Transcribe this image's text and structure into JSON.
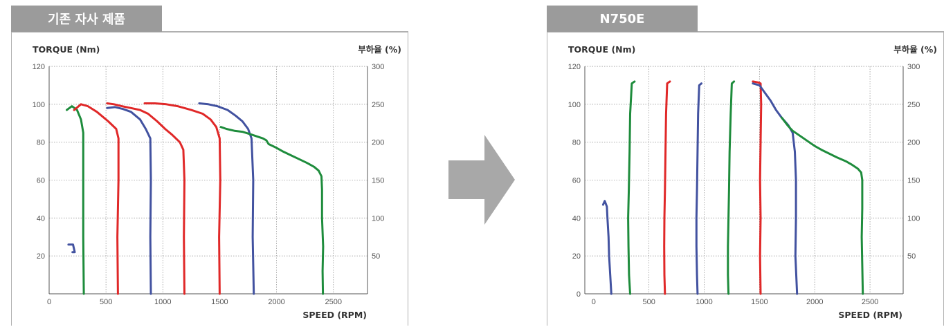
{
  "panels": [
    {
      "tab_label": "기존 자사 제품",
      "chart": {
        "type": "line",
        "ylabel": "TORQUE (Nm)",
        "y2label": "부하율 (%)",
        "xlabel": "SPEED (RPM)",
        "xlim": [
          0,
          2800
        ],
        "ylim": [
          0,
          120
        ],
        "y2lim": [
          0,
          300
        ],
        "x_ticks": [
          "0",
          "500",
          "1000",
          "1500",
          "2000",
          "2500"
        ],
        "y_ticks": [
          "20",
          "40",
          "60",
          "80",
          "100",
          "120"
        ],
        "y2_ticks": [
          "50",
          "100",
          "150",
          "200",
          "250",
          "300"
        ],
        "grid": true,
        "series": [
          {
            "color": "#1e8c3c",
            "points": [
              [
                155,
                97
              ],
              [
                200,
                99
              ],
              [
                245,
                97
              ],
              [
                280,
                92
              ],
              [
                300,
                85
              ],
              [
                300,
                60
              ],
              [
                300,
                30
              ],
              [
                305,
                0
              ]
            ]
          },
          {
            "color": "#4252a0",
            "points": [
              [
                170,
                26
              ],
              [
                210,
                26
              ],
              [
                225,
                22
              ],
              [
                205,
                22
              ]
            ]
          },
          {
            "color": "#e02828",
            "points": [
              [
                220,
                97
              ],
              [
                280,
                100
              ],
              [
                340,
                99
              ],
              [
                420,
                96
              ],
              [
                520,
                91
              ],
              [
                590,
                87
              ],
              [
                610,
                82
              ],
              [
                610,
                60
              ],
              [
                600,
                30
              ],
              [
                605,
                0
              ]
            ]
          },
          {
            "color": "#4252a0",
            "points": [
              [
                510,
                98
              ],
              [
                580,
                98.5
              ],
              [
                650,
                97.5
              ],
              [
                720,
                96
              ],
              [
                800,
                92
              ],
              [
                850,
                87
              ],
              [
                890,
                82
              ],
              [
                895,
                60
              ],
              [
                890,
                30
              ],
              [
                895,
                0
              ]
            ]
          },
          {
            "color": "#e02828",
            "points": [
              [
                510,
                100.5
              ],
              [
                570,
                100
              ],
              [
                640,
                99
              ],
              [
                720,
                98
              ],
              [
                800,
                97
              ],
              [
                870,
                95
              ],
              [
                950,
                91
              ],
              [
                1020,
                87
              ],
              [
                1080,
                84
              ],
              [
                1150,
                80
              ],
              [
                1180,
                76
              ],
              [
                1190,
                60
              ],
              [
                1185,
                30
              ],
              [
                1190,
                0
              ]
            ]
          },
          {
            "color": "#e02828",
            "points": [
              [
                840,
                100.5
              ],
              [
                930,
                100.5
              ],
              [
                1030,
                100
              ],
              [
                1130,
                99
              ],
              [
                1250,
                97
              ],
              [
                1350,
                95
              ],
              [
                1420,
                92
              ],
              [
                1470,
                88
              ],
              [
                1500,
                82
              ],
              [
                1505,
                60
              ],
              [
                1495,
                30
              ],
              [
                1500,
                0
              ]
            ]
          },
          {
            "color": "#4252a0",
            "points": [
              [
                1320,
                100.5
              ],
              [
                1400,
                100
              ],
              [
                1480,
                99
              ],
              [
                1570,
                97
              ],
              [
                1640,
                94
              ],
              [
                1700,
                91
              ],
              [
                1750,
                87
              ],
              [
                1780,
                82
              ],
              [
                1795,
                60
              ],
              [
                1790,
                30
              ],
              [
                1800,
                0
              ]
            ]
          },
          {
            "color": "#1e8c3c",
            "points": [
              [
                1510,
                88
              ],
              [
                1560,
                87
              ],
              [
                1630,
                86
              ],
              [
                1700,
                85.5
              ],
              [
                1780,
                84
              ],
              [
                1830,
                83
              ],
              [
                1880,
                82
              ],
              [
                1910,
                81
              ],
              [
                1930,
                79
              ],
              [
                2000,
                77
              ],
              [
                2060,
                75
              ],
              [
                2130,
                73
              ],
              [
                2200,
                71
              ],
              [
                2270,
                69
              ],
              [
                2330,
                67
              ],
              [
                2370,
                65
              ],
              [
                2395,
                62
              ],
              [
                2400,
                55
              ],
              [
                2400,
                40
              ],
              [
                2410,
                25
              ],
              [
                2405,
                12
              ],
              [
                2408,
                0
              ]
            ]
          }
        ]
      }
    },
    {
      "tab_label": "N750E",
      "chart": {
        "type": "line",
        "ylabel": "TORQUE (Nm)",
        "y2label": "부하율 (%)",
        "xlabel": "SPEED (RPM)",
        "xlim": [
          -80,
          2800
        ],
        "ylim": [
          0,
          120
        ],
        "y2lim": [
          0,
          300
        ],
        "x_ticks": [
          "0",
          "500",
          "1000",
          "1500",
          "2000",
          "2500"
        ],
        "y_ticks": [
          "0",
          "20",
          "40",
          "60",
          "80",
          "100",
          "120"
        ],
        "y2_ticks": [
          "50",
          "100",
          "150",
          "200",
          "250",
          "300"
        ],
        "grid": true,
        "series": [
          {
            "color": "#4252a0",
            "points": [
              [
                85,
                47
              ],
              [
                100,
                49
              ],
              [
                120,
                46
              ],
              [
                125,
                40
              ],
              [
                130,
                35
              ],
              [
                135,
                30
              ],
              [
                140,
                20
              ],
              [
                150,
                10
              ],
              [
                160,
                0
              ]
            ]
          },
          {
            "color": "#1e8c3c",
            "points": [
              [
                370,
                112
              ],
              [
                345,
                111
              ],
              [
                330,
                95
              ],
              [
                325,
                75
              ],
              [
                318,
                55
              ],
              [
                312,
                40
              ],
              [
                315,
                25
              ],
              [
                320,
                10
              ],
              [
                330,
                0
              ]
            ]
          },
          {
            "color": "#e02828",
            "points": [
              [
                690,
                112
              ],
              [
                665,
                111
              ],
              [
                655,
                95
              ],
              [
                650,
                75
              ],
              [
                645,
                55
              ],
              [
                640,
                40
              ],
              [
                638,
                25
              ],
              [
                640,
                10
              ],
              [
                645,
                0
              ]
            ]
          },
          {
            "color": "#4252a0",
            "points": [
              [
                975,
                111
              ],
              [
                955,
                110
              ],
              [
                945,
                95
              ],
              [
                940,
                75
              ],
              [
                935,
                55
              ],
              [
                930,
                40
              ],
              [
                930,
                25
              ],
              [
                935,
                10
              ],
              [
                940,
                0
              ]
            ]
          },
          {
            "color": "#1e8c3c",
            "points": [
              [
                1270,
                112
              ],
              [
                1250,
                111
              ],
              [
                1240,
                95
              ],
              [
                1230,
                75
              ],
              [
                1225,
                55
              ],
              [
                1220,
                40
              ],
              [
                1215,
                25
              ],
              [
                1215,
                10
              ],
              [
                1220,
                0
              ]
            ]
          },
          {
            "color": "#e02828",
            "points": [
              [
                1440,
                112
              ],
              [
                1490,
                111.5
              ],
              [
                1510,
                111
              ],
              [
                1515,
                100
              ],
              [
                1510,
                80
              ],
              [
                1505,
                60
              ],
              [
                1510,
                40
              ],
              [
                1505,
                20
              ],
              [
                1510,
                0
              ]
            ]
          },
          {
            "color": "#4252a0",
            "points": [
              [
                1440,
                111
              ],
              [
                1500,
                110
              ],
              [
                1550,
                106
              ],
              [
                1600,
                102
              ],
              [
                1650,
                97
              ],
              [
                1700,
                93
              ],
              [
                1760,
                89
              ],
              [
                1800,
                85
              ],
              [
                1820,
                75
              ],
              [
                1830,
                60
              ],
              [
                1830,
                40
              ],
              [
                1825,
                20
              ],
              [
                1840,
                0
              ]
            ]
          },
          {
            "color": "#1e8c3c",
            "points": [
              [
                1700,
                93
              ],
              [
                1760,
                88.5
              ],
              [
                1800,
                86
              ],
              [
                1850,
                84
              ],
              [
                1900,
                82
              ],
              [
                1950,
                80
              ],
              [
                2000,
                78
              ],
              [
                2060,
                76
              ],
              [
                2130,
                74
              ],
              [
                2200,
                72
              ],
              [
                2280,
                70
              ],
              [
                2340,
                68
              ],
              [
                2390,
                66
              ],
              [
                2420,
                64
              ],
              [
                2430,
                60
              ],
              [
                2430,
                45
              ],
              [
                2425,
                30
              ],
              [
                2430,
                15
              ],
              [
                2435,
                0
              ]
            ]
          }
        ]
      }
    }
  ]
}
